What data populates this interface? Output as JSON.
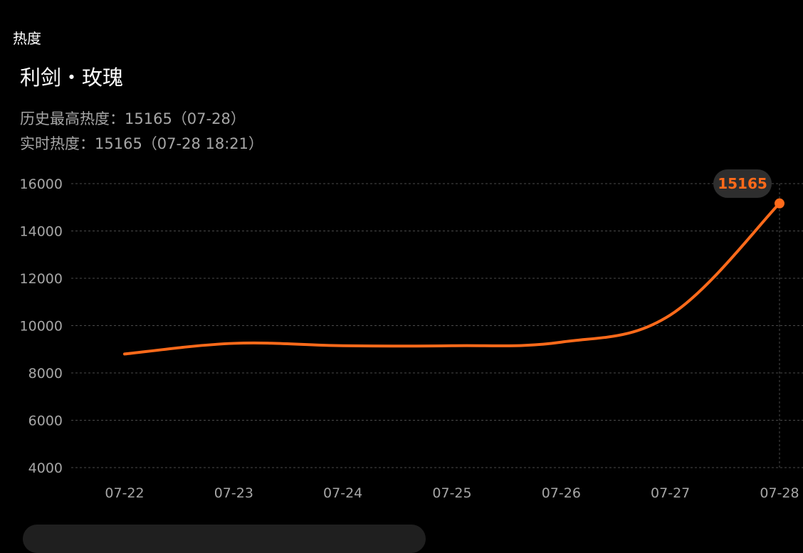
{
  "header": {
    "section_label": "热度"
  },
  "drama": {
    "title": "利剑・玫瑰",
    "peak_text": "历史最高热度：15165（07-28）",
    "realtime_text": "实时热度：15165（07-28 18:21）"
  },
  "colors": {
    "background": "#000000",
    "line": "#ff6a1a",
    "tooltip_bg": "#2e2e2e",
    "grid": "#4a4a4a",
    "muted_text": "#a6a6a6"
  },
  "chart_data": {
    "type": "line",
    "title": "",
    "xlabel": "",
    "ylabel": "",
    "categories": [
      "07-22",
      "07-23",
      "07-24",
      "07-25",
      "07-26",
      "07-27",
      "07-28"
    ],
    "yticks": [
      "16000",
      "14000",
      "12000",
      "10000",
      "8000",
      "6000",
      "4000"
    ],
    "ylim": [
      4000,
      16000
    ],
    "grid": true,
    "series": [
      {
        "values": [
          8800,
          9250,
          9150,
          9150,
          9300,
          10450,
          15165
        ]
      }
    ],
    "highlight": {
      "category": "07-28",
      "value": 15165,
      "label": "15165"
    }
  }
}
